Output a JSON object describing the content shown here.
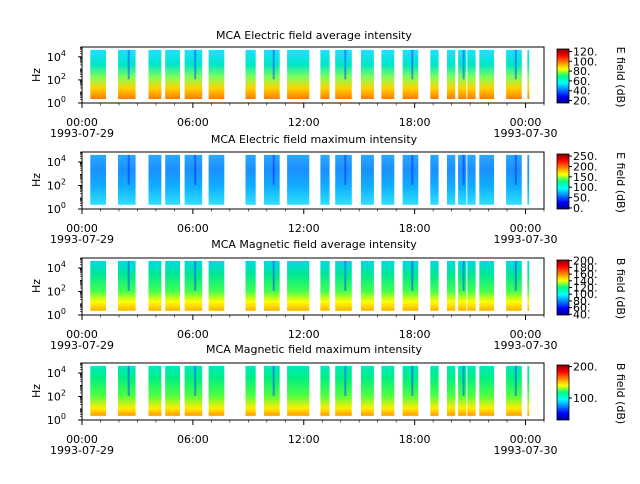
{
  "chart_data": [
    {
      "type": "heatmap",
      "title": "MCA  Electric field average intensity",
      "ylabel": "Hz",
      "y_scale": "log",
      "y_ticks": [
        {
          "value": 1,
          "base": "10",
          "exp": "0"
        },
        {
          "value": 100,
          "base": "10",
          "exp": "2"
        },
        {
          "value": 10000,
          "base": "10",
          "exp": "4"
        }
      ],
      "xlim": [
        "1993-07-29 00:00",
        "1993-07-30 01:00"
      ],
      "x_ticks": [
        {
          "label": "00:00",
          "hour": 0
        },
        {
          "label": "06:00",
          "hour": 6
        },
        {
          "label": "12:00",
          "hour": 12
        },
        {
          "label": "18:00",
          "hour": 18
        },
        {
          "label": "00:00",
          "hour": 24
        }
      ],
      "date_labels": [
        {
          "label": "1993-07-29",
          "hour": 0
        },
        {
          "label": "1993-07-30",
          "hour": 24
        }
      ],
      "colorbar": {
        "label": "E field (dB)",
        "range": [
          15,
          125
        ],
        "ticks": [
          "20.",
          "40.",
          "60.",
          "80.",
          "100.",
          "120."
        ]
      },
      "data_segments_hours": [
        [
          0.45,
          1.3
        ],
        [
          1.95,
          2.9
        ],
        [
          3.6,
          4.3
        ],
        [
          4.5,
          5.3
        ],
        [
          5.55,
          6.5
        ],
        [
          6.85,
          7.7
        ],
        [
          8.85,
          9.4
        ],
        [
          9.85,
          10.7
        ],
        [
          11.1,
          12.3
        ],
        [
          12.9,
          13.4
        ],
        [
          13.7,
          14.6
        ],
        [
          15.1,
          15.8
        ],
        [
          16.2,
          16.9
        ],
        [
          17.35,
          18.2
        ],
        [
          18.85,
          19.3
        ],
        [
          19.75,
          20.2
        ],
        [
          20.35,
          20.8
        ],
        [
          20.85,
          21.3
        ],
        [
          21.5,
          22.3
        ],
        [
          22.95,
          23.8
        ],
        [
          24.1,
          24.2
        ]
      ],
      "spectrum_trend": "high intensity (orange-red) at low frequencies, green-cyan at 10^2-10^4 Hz"
    },
    {
      "type": "heatmap",
      "title": "MCA  Electric field maximum intensity",
      "ylabel": "Hz",
      "y_scale": "log",
      "y_ticks": [
        {
          "value": 1,
          "base": "10",
          "exp": "0"
        },
        {
          "value": 100,
          "base": "10",
          "exp": "2"
        },
        {
          "value": 10000,
          "base": "10",
          "exp": "4"
        }
      ],
      "xlim": [
        "1993-07-29 00:00",
        "1993-07-30 01:00"
      ],
      "x_ticks": [
        {
          "label": "00:00",
          "hour": 0
        },
        {
          "label": "06:00",
          "hour": 6
        },
        {
          "label": "12:00",
          "hour": 12
        },
        {
          "label": "18:00",
          "hour": 18
        },
        {
          "label": "00:00",
          "hour": 24
        }
      ],
      "date_labels": [
        {
          "label": "1993-07-29",
          "hour": 0
        },
        {
          "label": "1993-07-30",
          "hour": 24
        }
      ],
      "colorbar": {
        "label": "E field (dB)",
        "range": [
          -5,
          260
        ],
        "ticks": [
          "0.",
          "50.",
          "100.",
          "150.",
          "200.",
          "250."
        ]
      },
      "data_segments_hours": [
        [
          0.45,
          1.3
        ],
        [
          1.95,
          2.9
        ],
        [
          3.6,
          4.3
        ],
        [
          4.5,
          5.3
        ],
        [
          5.55,
          6.5
        ],
        [
          6.85,
          7.7
        ],
        [
          8.85,
          9.4
        ],
        [
          9.85,
          10.7
        ],
        [
          11.1,
          12.3
        ],
        [
          12.9,
          13.4
        ],
        [
          13.7,
          14.6
        ],
        [
          15.1,
          15.8
        ],
        [
          16.2,
          16.9
        ],
        [
          17.35,
          18.2
        ],
        [
          18.85,
          19.3
        ],
        [
          19.75,
          20.2
        ],
        [
          20.35,
          20.8
        ],
        [
          20.85,
          21.3
        ],
        [
          21.5,
          22.3
        ],
        [
          22.95,
          23.8
        ],
        [
          24.1,
          24.2
        ]
      ],
      "spectrum_trend": "mostly blue-cyan with green patches at low frequencies"
    },
    {
      "type": "heatmap",
      "title": "MCA  Magnetic field average intensity",
      "ylabel": "Hz",
      "y_scale": "log",
      "y_ticks": [
        {
          "value": 1,
          "base": "10",
          "exp": "0"
        },
        {
          "value": 100,
          "base": "10",
          "exp": "2"
        },
        {
          "value": 10000,
          "base": "10",
          "exp": "4"
        }
      ],
      "xlim": [
        "1993-07-29 00:00",
        "1993-07-30 01:00"
      ],
      "x_ticks": [
        {
          "label": "00:00",
          "hour": 0
        },
        {
          "label": "06:00",
          "hour": 6
        },
        {
          "label": "12:00",
          "hour": 12
        },
        {
          "label": "18:00",
          "hour": 18
        },
        {
          "label": "00:00",
          "hour": 24
        }
      ],
      "date_labels": [
        {
          "label": "1993-07-29",
          "hour": 0
        },
        {
          "label": "1993-07-30",
          "hour": 24
        }
      ],
      "colorbar": {
        "label": "B field (dB)",
        "range": [
          38,
          202
        ],
        "ticks": [
          "40.",
          "60.",
          "80.",
          "100.",
          "120.",
          "140.",
          "160.",
          "180.",
          "200."
        ]
      },
      "data_segments_hours": [
        [
          0.45,
          1.3
        ],
        [
          1.95,
          2.9
        ],
        [
          3.6,
          4.3
        ],
        [
          4.5,
          5.3
        ],
        [
          5.55,
          6.5
        ],
        [
          6.85,
          7.7
        ],
        [
          8.85,
          9.4
        ],
        [
          9.85,
          10.7
        ],
        [
          11.1,
          12.3
        ],
        [
          12.9,
          13.4
        ],
        [
          13.7,
          14.6
        ],
        [
          15.1,
          15.8
        ],
        [
          16.2,
          16.9
        ],
        [
          17.35,
          18.2
        ],
        [
          18.85,
          19.3
        ],
        [
          19.75,
          20.2
        ],
        [
          20.35,
          20.8
        ],
        [
          20.85,
          21.3
        ],
        [
          21.5,
          22.3
        ],
        [
          22.95,
          23.8
        ],
        [
          24.1,
          24.2
        ]
      ],
      "spectrum_trend": "yellow-orange at low frequencies, green mid, cyan near 10^4 Hz"
    },
    {
      "type": "heatmap",
      "title": "MCA  Magnetic field maximum intensity",
      "ylabel": "Hz",
      "y_scale": "log",
      "y_ticks": [
        {
          "value": 1,
          "base": "10",
          "exp": "0"
        },
        {
          "value": 100,
          "base": "10",
          "exp": "2"
        },
        {
          "value": 10000,
          "base": "10",
          "exp": "4"
        }
      ],
      "xlim": [
        "1993-07-29 00:00",
        "1993-07-30 01:00"
      ],
      "x_ticks": [
        {
          "label": "00:00",
          "hour": 0
        },
        {
          "label": "06:00",
          "hour": 6
        },
        {
          "label": "12:00",
          "hour": 12
        },
        {
          "label": "18:00",
          "hour": 18
        },
        {
          "label": "00:00",
          "hour": 24
        }
      ],
      "date_labels": [
        {
          "label": "1993-07-29",
          "hour": 0
        },
        {
          "label": "1993-07-30",
          "hour": 24
        }
      ],
      "colorbar": {
        "label": "B field (dB)",
        "range": [
          30,
          205
        ],
        "ticks": [
          "100.",
          "200."
        ]
      },
      "data_segments_hours": [
        [
          0.45,
          1.3
        ],
        [
          1.95,
          2.9
        ],
        [
          3.6,
          4.3
        ],
        [
          4.5,
          5.3
        ],
        [
          5.55,
          6.5
        ],
        [
          6.85,
          7.7
        ],
        [
          8.85,
          9.4
        ],
        [
          9.85,
          10.7
        ],
        [
          11.1,
          12.3
        ],
        [
          12.9,
          13.4
        ],
        [
          13.7,
          14.6
        ],
        [
          15.1,
          15.8
        ],
        [
          16.2,
          16.9
        ],
        [
          17.35,
          18.2
        ],
        [
          18.85,
          19.3
        ],
        [
          19.75,
          20.2
        ],
        [
          20.35,
          20.8
        ],
        [
          20.85,
          21.3
        ],
        [
          21.5,
          22.3
        ],
        [
          22.95,
          23.8
        ],
        [
          24.1,
          24.2
        ]
      ],
      "spectrum_trend": "yellow-orange at low frequencies, green to cyan at higher frequencies"
    }
  ]
}
